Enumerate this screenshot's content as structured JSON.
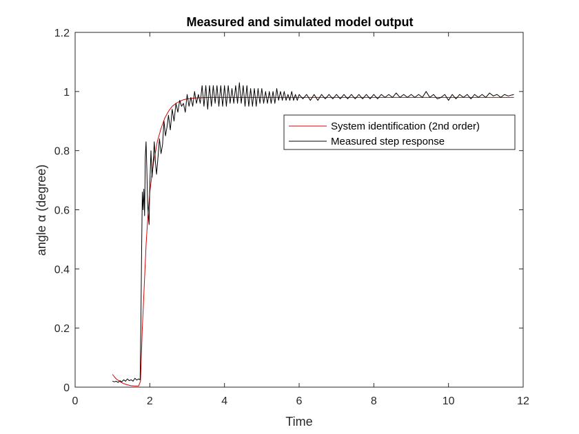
{
  "chart_data": {
    "type": "line",
    "title": "Measured and simulated model output",
    "xlabel": "Time",
    "ylabel": "angle α (degree)",
    "xlim": [
      0,
      12
    ],
    "ylim": [
      0,
      1.2
    ],
    "xticks": [
      "0",
      "2",
      "4",
      "6",
      "8",
      "10",
      "12"
    ],
    "yticks": [
      "0",
      "0.2",
      "0.4",
      "0.6",
      "0.8",
      "1",
      "1.2"
    ],
    "grid": false,
    "legend_position": "right",
    "series": [
      {
        "name": "System identification (2nd order)",
        "color": "#d40000",
        "x": [
          1.0,
          1.05,
          1.1,
          1.2,
          1.3,
          1.4,
          1.5,
          1.6,
          1.7,
          1.75,
          1.8,
          1.85,
          1.9,
          1.95,
          2.0,
          2.1,
          2.2,
          2.3,
          2.4,
          2.5,
          2.6,
          2.7,
          2.8,
          2.9,
          3.0,
          3.2,
          3.4,
          3.6,
          3.8,
          4.0,
          4.5,
          5.0,
          6.0,
          7.0,
          8.0,
          9.0,
          10.0,
          11.0,
          11.75
        ],
        "y": [
          0.043,
          0.035,
          0.028,
          0.019,
          0.012,
          0.008,
          0.005,
          0.004,
          0.004,
          0.02,
          0.2,
          0.34,
          0.48,
          0.58,
          0.66,
          0.76,
          0.83,
          0.875,
          0.91,
          0.933,
          0.95,
          0.96,
          0.967,
          0.972,
          0.975,
          0.978,
          0.979,
          0.98,
          0.98,
          0.98,
          0.98,
          0.98,
          0.98,
          0.98,
          0.98,
          0.98,
          0.98,
          0.98,
          0.98
        ]
      },
      {
        "name": "Measured step response",
        "color": "#000000",
        "x": [
          1.0,
          1.05,
          1.1,
          1.15,
          1.2,
          1.25,
          1.3,
          1.35,
          1.4,
          1.45,
          1.5,
          1.55,
          1.6,
          1.65,
          1.7,
          1.74,
          1.76,
          1.78,
          1.8,
          1.82,
          1.84,
          1.86,
          1.88,
          1.9,
          1.92,
          1.94,
          1.96,
          1.98,
          2.0,
          2.03,
          2.06,
          2.09,
          2.12,
          2.15,
          2.18,
          2.22,
          2.26,
          2.3,
          2.34,
          2.38,
          2.42,
          2.46,
          2.5,
          2.55,
          2.6,
          2.65,
          2.7,
          2.75,
          2.8,
          2.85,
          2.9,
          2.95,
          3.0,
          3.05,
          3.1,
          3.15,
          3.2,
          3.25,
          3.3,
          3.35,
          3.4,
          3.45,
          3.5,
          3.55,
          3.6,
          3.65,
          3.7,
          3.75,
          3.8,
          3.85,
          3.9,
          3.95,
          4.0,
          4.05,
          4.1,
          4.15,
          4.2,
          4.25,
          4.3,
          4.35,
          4.4,
          4.45,
          4.5,
          4.55,
          4.6,
          4.65,
          4.7,
          4.75,
          4.8,
          4.85,
          4.9,
          4.95,
          5.0,
          5.05,
          5.1,
          5.15,
          5.2,
          5.25,
          5.3,
          5.35,
          5.4,
          5.45,
          5.5,
          5.55,
          5.6,
          5.65,
          5.7,
          5.75,
          5.8,
          5.85,
          5.9,
          5.95,
          6.0,
          6.1,
          6.2,
          6.3,
          6.4,
          6.5,
          6.6,
          6.7,
          6.8,
          6.9,
          7.0,
          7.1,
          7.2,
          7.3,
          7.4,
          7.5,
          7.6,
          7.7,
          7.8,
          7.9,
          8.0,
          8.1,
          8.2,
          8.3,
          8.4,
          8.5,
          8.6,
          8.7,
          8.8,
          8.9,
          9.0,
          9.1,
          9.2,
          9.3,
          9.4,
          9.5,
          9.6,
          9.7,
          9.8,
          9.9,
          10.0,
          10.1,
          10.2,
          10.3,
          10.4,
          10.5,
          10.6,
          10.7,
          10.8,
          10.9,
          11.0,
          11.1,
          11.2,
          11.3,
          11.4,
          11.5,
          11.6,
          11.75
        ],
        "y": [
          0.02,
          0.018,
          0.02,
          0.016,
          0.022,
          0.018,
          0.025,
          0.02,
          0.028,
          0.022,
          0.025,
          0.02,
          0.03,
          0.024,
          0.028,
          0.025,
          0.2,
          0.45,
          0.66,
          0.6,
          0.67,
          0.58,
          0.78,
          0.83,
          0.74,
          0.62,
          0.58,
          0.55,
          0.68,
          0.8,
          0.71,
          0.76,
          0.83,
          0.76,
          0.72,
          0.78,
          0.84,
          0.79,
          0.82,
          0.9,
          0.85,
          0.88,
          0.92,
          0.87,
          0.94,
          0.9,
          0.96,
          0.93,
          0.97,
          0.95,
          0.96,
          0.93,
          0.99,
          0.95,
          0.98,
          0.95,
          1.0,
          0.96,
          0.99,
          0.96,
          1.02,
          0.95,
          1.02,
          0.94,
          1.02,
          0.95,
          1.02,
          0.96,
          1.02,
          0.95,
          1.02,
          0.95,
          1.02,
          0.95,
          1.02,
          0.96,
          1.01,
          0.96,
          1.02,
          0.96,
          1.03,
          0.96,
          1.02,
          0.95,
          1.02,
          0.95,
          1.01,
          0.95,
          1.01,
          0.95,
          1.01,
          0.96,
          1.01,
          0.96,
          1.0,
          0.96,
          1.0,
          0.96,
          1.0,
          0.96,
          1.01,
          0.97,
          1.0,
          0.97,
          1.0,
          0.97,
          0.99,
          0.97,
          1.0,
          0.97,
          0.99,
          0.97,
          0.99,
          0.975,
          0.99,
          0.97,
          0.99,
          0.97,
          0.99,
          0.975,
          0.99,
          0.975,
          0.99,
          0.975,
          0.99,
          0.975,
          0.99,
          0.975,
          0.99,
          0.975,
          0.99,
          0.975,
          0.99,
          0.975,
          0.99,
          0.98,
          0.99,
          0.98,
          0.995,
          0.98,
          0.99,
          0.98,
          0.99,
          0.98,
          0.99,
          0.98,
          1.0,
          0.98,
          0.99,
          0.975,
          0.98,
          0.99,
          0.97,
          0.99,
          0.975,
          0.99,
          0.98,
          0.99,
          0.975,
          0.99,
          0.98,
          0.99,
          0.98,
          0.995,
          0.985,
          0.99,
          0.98,
          0.99,
          0.985,
          0.99
        ]
      }
    ]
  }
}
